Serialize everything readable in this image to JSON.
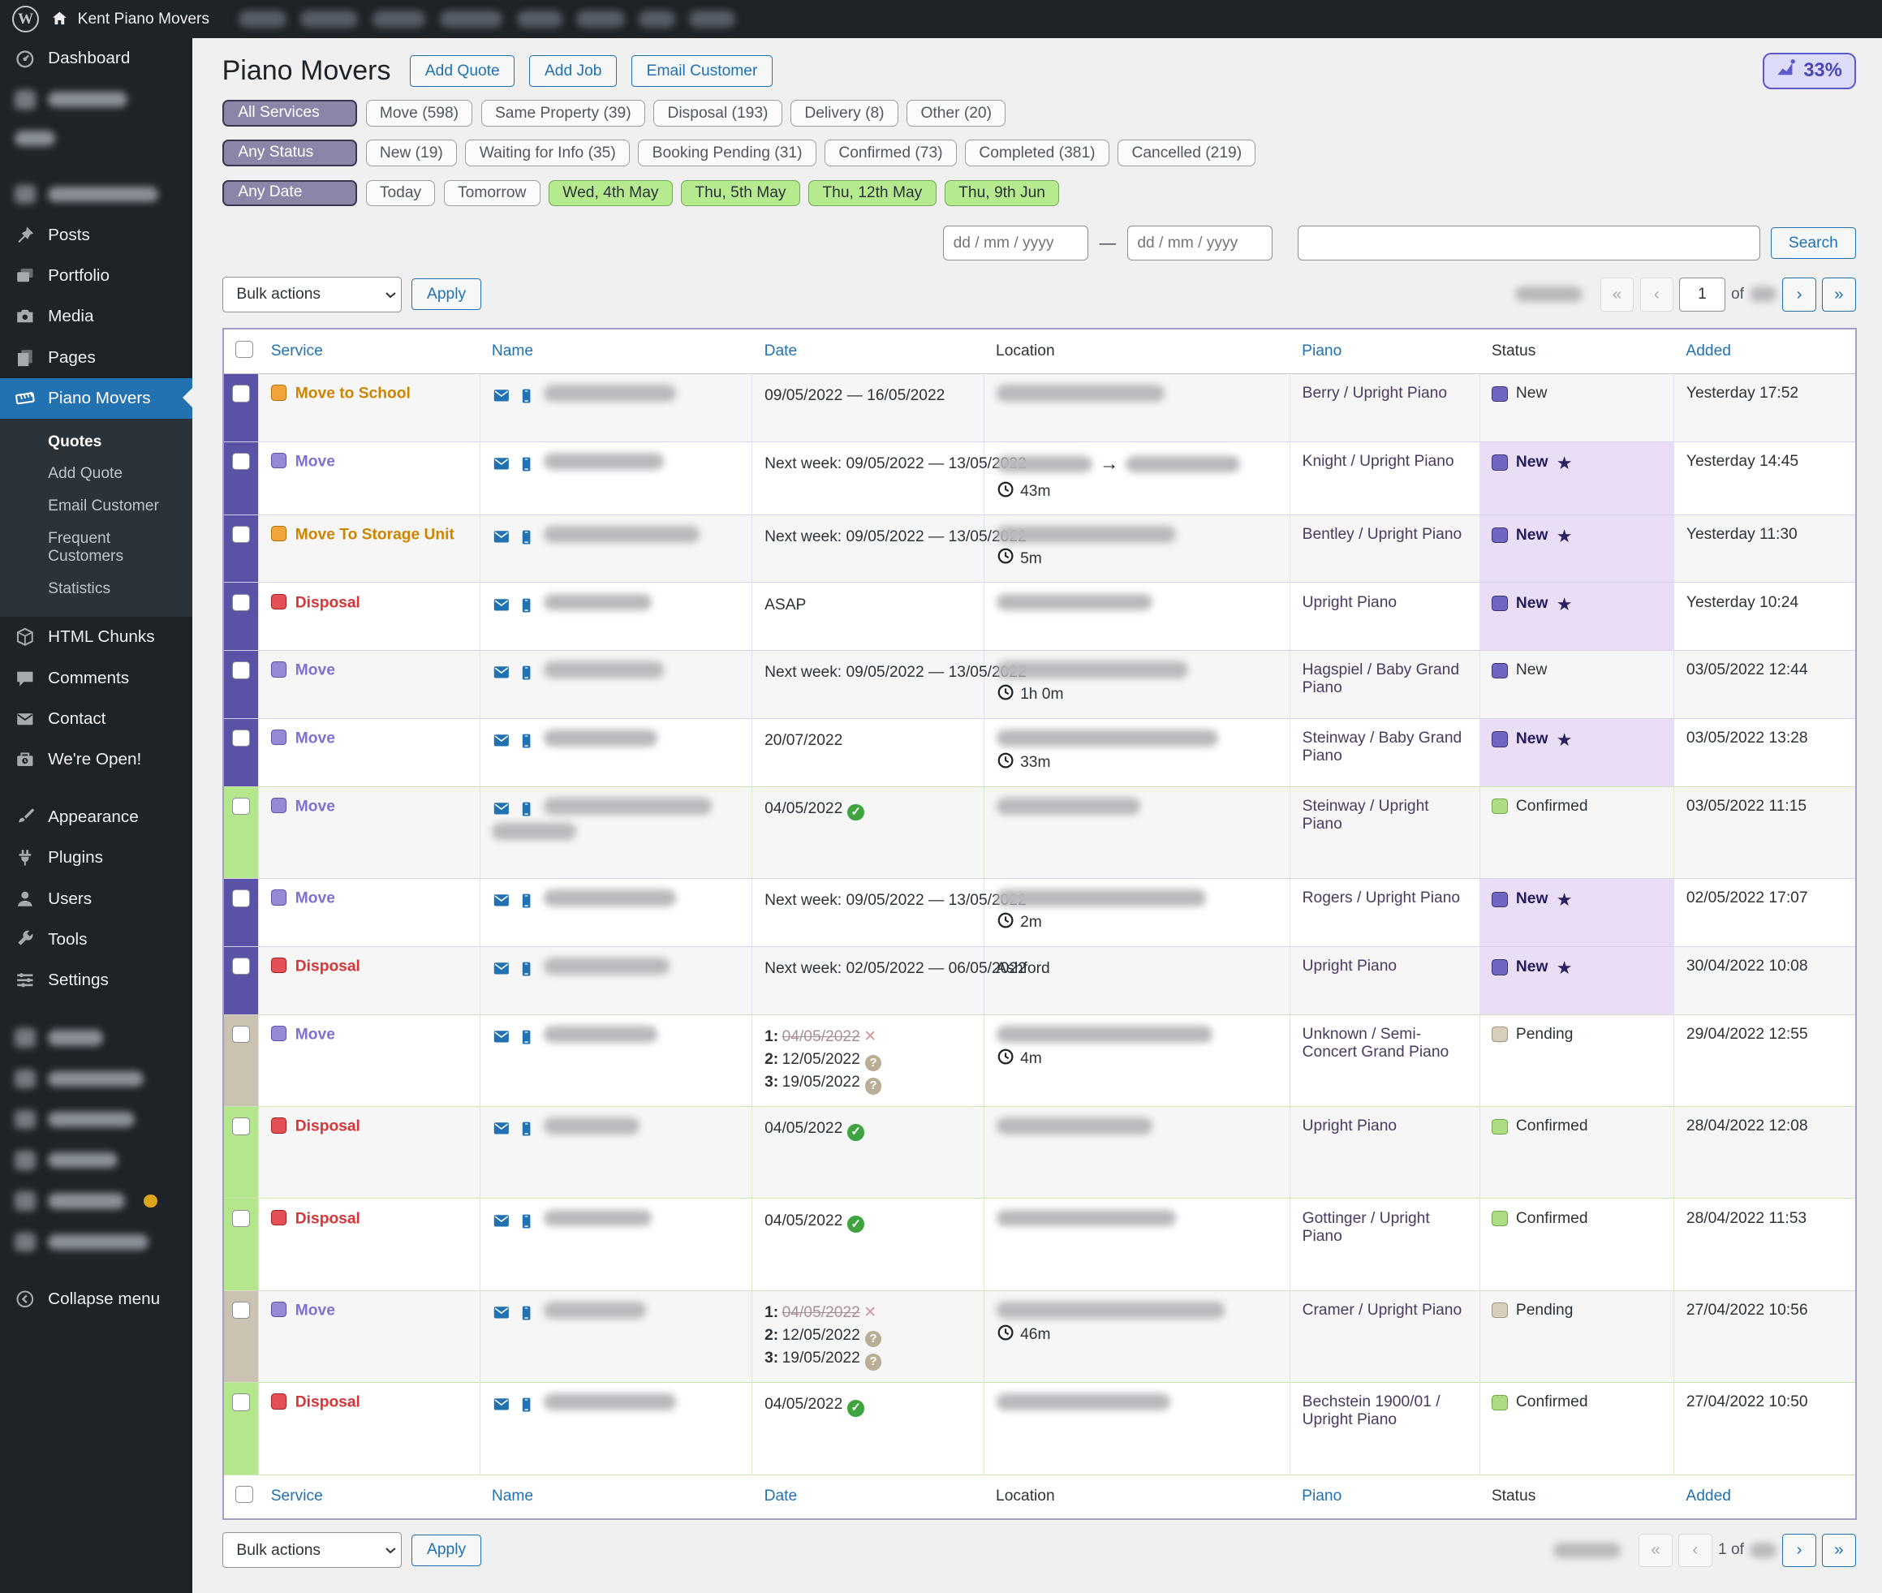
{
  "admin_bar": {
    "site_name": "Kent Piano Movers",
    "blur_widths": [
      40,
      48,
      44,
      52,
      38,
      40,
      30,
      38
    ]
  },
  "header": {
    "title": "Piano Movers",
    "add_quote": "Add Quote",
    "add_job": "Add Job",
    "email_customer": "Email Customer",
    "badge": "33%"
  },
  "sidebar": {
    "items": [
      {
        "type": "item",
        "icon": "dashboard-icon",
        "label": "Dashboard"
      },
      {
        "type": "blur",
        "w": 66
      },
      {
        "type": "blur-small",
        "w": 34
      },
      {
        "type": "gap"
      },
      {
        "type": "blur",
        "w": 92
      },
      {
        "type": "item",
        "icon": "pin-icon",
        "label": "Posts"
      },
      {
        "type": "item",
        "icon": "portfolio-icon",
        "label": "Portfolio"
      },
      {
        "type": "item",
        "icon": "media-icon",
        "label": "Media"
      },
      {
        "type": "item",
        "icon": "pages-icon",
        "label": "Pages"
      },
      {
        "type": "active",
        "icon": "piano-icon",
        "label": "Piano Movers"
      },
      {
        "type": "submenu",
        "entries": [
          {
            "label": "Quotes",
            "current": true
          },
          {
            "label": "Add Quote",
            "current": false
          },
          {
            "label": "Email Customer",
            "current": false
          },
          {
            "label": "Frequent Customers",
            "current": false
          },
          {
            "label": "Statistics",
            "current": false
          }
        ]
      },
      {
        "type": "item",
        "icon": "chunks-icon",
        "label": "HTML Chunks"
      },
      {
        "type": "item",
        "icon": "comments-icon",
        "label": "Comments"
      },
      {
        "type": "item",
        "icon": "contact-icon",
        "label": "Contact"
      },
      {
        "type": "item",
        "icon": "open-sign-icon",
        "label": "We're Open!"
      },
      {
        "type": "gap"
      },
      {
        "type": "item",
        "icon": "appearance-icon",
        "label": "Appearance"
      },
      {
        "type": "item",
        "icon": "plugins-icon",
        "label": "Plugins"
      },
      {
        "type": "item",
        "icon": "users-icon",
        "label": "Users"
      },
      {
        "type": "item",
        "icon": "tools-icon",
        "label": "Tools"
      },
      {
        "type": "item",
        "icon": "settings-icon",
        "label": "Settings"
      },
      {
        "type": "gap"
      },
      {
        "type": "blur",
        "w": 46
      },
      {
        "type": "blur",
        "w": 80
      },
      {
        "type": "blur",
        "w": 72
      },
      {
        "type": "blur",
        "w": 58
      },
      {
        "type": "blur-dot",
        "w": 64
      },
      {
        "type": "blur",
        "w": 84
      },
      {
        "type": "gap"
      },
      {
        "type": "item",
        "icon": "collapse-icon",
        "label": "Collapse menu"
      }
    ]
  },
  "filters": {
    "services": {
      "selected": "All Services",
      "options": [
        {
          "label": "Move (598)"
        },
        {
          "label": "Same Property (39)"
        },
        {
          "label": "Disposal (193)"
        },
        {
          "label": "Delivery (8)"
        },
        {
          "label": "Other (20)"
        }
      ]
    },
    "statuses": {
      "selected": "Any Status",
      "options": [
        {
          "label": "New (19)"
        },
        {
          "label": "Waiting for Info (35)"
        },
        {
          "label": "Booking Pending (31)"
        },
        {
          "label": "Confirmed (73)"
        },
        {
          "label": "Completed (381)"
        },
        {
          "label": "Cancelled (219)"
        }
      ]
    },
    "dates": {
      "selected": "Any Date",
      "options": [
        {
          "label": "Today"
        },
        {
          "label": "Tomorrow"
        },
        {
          "label": "Wed, 4th May",
          "highlight": true
        },
        {
          "label": "Thu, 5th May",
          "highlight": true
        },
        {
          "label": "Thu, 12th May",
          "highlight": true
        },
        {
          "label": "Thu, 9th Jun",
          "highlight": true
        }
      ]
    }
  },
  "search": {
    "date_placeholder": "dd / mm / yyyy",
    "range_separator": "—",
    "query_value": "",
    "button": "Search"
  },
  "toolbar": {
    "bulk_actions": "Bulk actions",
    "apply": "Apply",
    "first": "«",
    "prev": "‹",
    "next": "›",
    "last": "»",
    "page_value": "1",
    "of_label": "of",
    "bottom_page_label": "1 of"
  },
  "table": {
    "columns": [
      {
        "label": "Service",
        "sortable": true
      },
      {
        "label": "Name",
        "sortable": true
      },
      {
        "label": "Date",
        "sortable": true
      },
      {
        "label": "Location",
        "sortable": false
      },
      {
        "label": "Piano",
        "sortable": true
      },
      {
        "label": "Status",
        "sortable": false
      },
      {
        "label": "Added",
        "sortable": true
      }
    ],
    "rows": [
      {
        "stripe": "new",
        "service": {
          "label": "Move to School",
          "color": "orange"
        },
        "name_blurs": [
          110
        ],
        "date": {
          "lines": [
            {
              "text": "09/05/2022 — 16/05/2022"
            }
          ]
        },
        "location": {
          "blurs": [
            140
          ]
        },
        "piano": "Berry / Upright Piano",
        "status": {
          "label": "New",
          "kind": "new",
          "starred": false
        },
        "added": "Yesterday 17:52"
      },
      {
        "stripe": "new",
        "service": {
          "label": "Move",
          "color": "purple"
        },
        "name_blurs": [
          100
        ],
        "date": {
          "lines": [
            {
              "text": "Next week: 09/05/2022 — 13/05/2022"
            }
          ]
        },
        "location": {
          "blurs": [
            80,
            95
          ],
          "arrow": true,
          "travel": "43m"
        },
        "piano": "Knight / Upright Piano",
        "status": {
          "label": "New",
          "kind": "new",
          "starred": true
        },
        "added": "Yesterday 14:45"
      },
      {
        "stripe": "new",
        "service": {
          "label": "Move To Storage Unit",
          "color": "orange"
        },
        "name_blurs": [
          130
        ],
        "date": {
          "lines": [
            {
              "text": "Next week: 09/05/2022 — 13/05/2022"
            }
          ]
        },
        "location": {
          "blurs": [
            150
          ],
          "travel": "5m"
        },
        "piano": "Bentley / Upright Piano",
        "status": {
          "label": "New",
          "kind": "new",
          "starred": true
        },
        "added": "Yesterday 11:30"
      },
      {
        "stripe": "new",
        "service": {
          "label": "Disposal",
          "color": "red"
        },
        "name_blurs": [
          90
        ],
        "date": {
          "lines": [
            {
              "text": "ASAP"
            }
          ]
        },
        "location": {
          "blurs": [
            130
          ]
        },
        "piano": "Upright Piano",
        "status": {
          "label": "New",
          "kind": "new",
          "starred": true
        },
        "added": "Yesterday 10:24"
      },
      {
        "stripe": "new",
        "service": {
          "label": "Move",
          "color": "purple"
        },
        "name_blurs": [
          100
        ],
        "date": {
          "lines": [
            {
              "text": "Next week: 09/05/2022 — 13/05/2022"
            }
          ]
        },
        "location": {
          "blurs": [
            160
          ],
          "travel": "1h 0m"
        },
        "piano": "Hagspiel / Baby Grand Piano",
        "status": {
          "label": "New",
          "kind": "new",
          "starred": false
        },
        "added": "03/05/2022 12:44"
      },
      {
        "stripe": "new",
        "service": {
          "label": "Move",
          "color": "purple"
        },
        "name_blurs": [
          95
        ],
        "date": {
          "lines": [
            {
              "text": "20/07/2022"
            }
          ]
        },
        "location": {
          "blurs": [
            185
          ],
          "travel": "33m"
        },
        "piano": "Steinway / Baby Grand Piano",
        "status": {
          "label": "New",
          "kind": "new",
          "starred": true
        },
        "added": "03/05/2022 13:28"
      },
      {
        "stripe": "confirmed",
        "tall": true,
        "service": {
          "label": "Move",
          "color": "purple"
        },
        "name_blurs": [
          140,
          70
        ],
        "date": {
          "lines": [
            {
              "text": "04/05/2022",
              "mark": "check"
            }
          ]
        },
        "location": {
          "blurs": [
            120
          ]
        },
        "piano": "Steinway / Upright Piano",
        "status": {
          "label": "Confirmed",
          "kind": "confirmed",
          "starred": false
        },
        "added": "03/05/2022 11:15"
      },
      {
        "stripe": "new",
        "service": {
          "label": "Move",
          "color": "purple"
        },
        "name_blurs": [
          110
        ],
        "date": {
          "lines": [
            {
              "text": "Next week: 09/05/2022 — 13/05/2022"
            }
          ]
        },
        "location": {
          "blurs": [
            175
          ],
          "travel": "2m"
        },
        "piano": "Rogers / Upright Piano",
        "status": {
          "label": "New",
          "kind": "new",
          "starred": true
        },
        "added": "02/05/2022 17:07"
      },
      {
        "stripe": "new",
        "service": {
          "label": "Disposal",
          "color": "red"
        },
        "name_blurs": [
          105
        ],
        "date": {
          "lines": [
            {
              "text": "Next week: 02/05/2022 — 06/05/2022"
            }
          ]
        },
        "location": {
          "text": "Ashford"
        },
        "piano": "Upright Piano",
        "status": {
          "label": "New",
          "kind": "new",
          "starred": true
        },
        "added": "30/04/2022 10:08"
      },
      {
        "stripe": "pending",
        "tall": true,
        "service": {
          "label": "Move",
          "color": "purple"
        },
        "name_blurs": [
          95
        ],
        "date": {
          "lines": [
            {
              "prefix": "1:",
              "text": "04/05/2022",
              "strike": true,
              "mark": "cross"
            },
            {
              "prefix": "2:",
              "text": "12/05/2022",
              "mark": "question"
            },
            {
              "prefix": "3:",
              "text": "19/05/2022",
              "mark": "question"
            }
          ]
        },
        "location": {
          "blurs": [
            180
          ],
          "travel": "4m"
        },
        "piano": "Unknown / Semi-Concert Grand Piano",
        "status": {
          "label": "Pending",
          "kind": "pending",
          "starred": false
        },
        "added": "29/04/2022 12:55"
      },
      {
        "stripe": "confirmed",
        "tall": true,
        "service": {
          "label": "Disposal",
          "color": "red"
        },
        "name_blurs": [
          80
        ],
        "date": {
          "lines": [
            {
              "text": "04/05/2022",
              "mark": "check"
            }
          ]
        },
        "location": {
          "blurs": [
            130
          ]
        },
        "piano": "Upright Piano",
        "status": {
          "label": "Confirmed",
          "kind": "confirmed",
          "starred": false
        },
        "added": "28/04/2022 12:08"
      },
      {
        "stripe": "confirmed",
        "tall": true,
        "service": {
          "label": "Disposal",
          "color": "red"
        },
        "name_blurs": [
          90
        ],
        "date": {
          "lines": [
            {
              "text": "04/05/2022",
              "mark": "check"
            }
          ]
        },
        "location": {
          "blurs": [
            150
          ]
        },
        "piano": "Gottinger / Upright Piano",
        "status": {
          "label": "Confirmed",
          "kind": "confirmed",
          "starred": false
        },
        "added": "28/04/2022 11:53"
      },
      {
        "stripe": "pending",
        "tall": true,
        "service": {
          "label": "Move",
          "color": "purple"
        },
        "name_blurs": [
          85
        ],
        "date": {
          "lines": [
            {
              "prefix": "1:",
              "text": "04/05/2022",
              "strike": true,
              "mark": "cross"
            },
            {
              "prefix": "2:",
              "text": "12/05/2022",
              "mark": "question"
            },
            {
              "prefix": "3:",
              "text": "19/05/2022",
              "mark": "question"
            }
          ]
        },
        "location": {
          "blurs": [
            190
          ],
          "travel": "46m"
        },
        "piano": "Cramer / Upright Piano",
        "status": {
          "label": "Pending",
          "kind": "pending",
          "starred": false
        },
        "added": "27/04/2022 10:56"
      },
      {
        "stripe": "confirmed",
        "tall": true,
        "service": {
          "label": "Disposal",
          "color": "red"
        },
        "name_blurs": [
          110
        ],
        "date": {
          "lines": [
            {
              "text": "04/05/2022",
              "mark": "check"
            }
          ]
        },
        "location": {
          "blurs": [
            145
          ]
        },
        "piano": "Bechstein 1900/01 / Upright Piano",
        "status": {
          "label": "Confirmed",
          "kind": "confirmed",
          "starred": false
        },
        "added": "27/04/2022 10:50"
      }
    ]
  },
  "colors": {
    "accent_blue": "#2271b1",
    "stripe_new": "#5a52a6",
    "stripe_confirmed": "#b4e68c",
    "stripe_pending": "#cbc3b1",
    "starred_bg": "#e9def5",
    "date_highlight_green": "#b6ea8f",
    "selected_pill": "#8b85a7",
    "service_orange": "#cd8500",
    "service_purple": "#8270cf",
    "service_red": "#d63638"
  }
}
